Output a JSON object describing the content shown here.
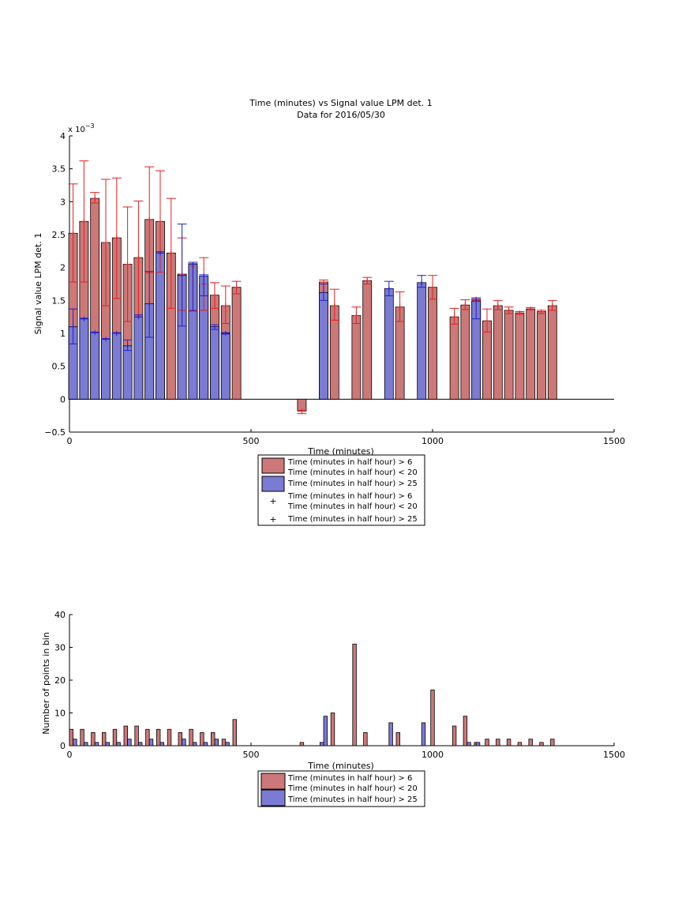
{
  "colors": {
    "red_bar": "#cc7878",
    "blue_bar": "#7b7bd4",
    "red_err": "#e02020",
    "blue_err": "#2020cc",
    "axis": "#000000"
  },
  "chart_data": [
    {
      "type": "bar",
      "title": "Time (minutes) vs Signal value LPM det. 1",
      "subtitle": "Data for 2016/05/30",
      "xlabel": "Time (minutes)",
      "ylabel": "Signal value LPM det. 1",
      "exponent_label": "x 10",
      "exponent_power": "−3",
      "xlim": [
        0,
        1500
      ],
      "ylim": [
        -0.5,
        4
      ],
      "y_scale_factor": 0.001,
      "xticks": [
        "0",
        "500",
        "1000",
        "1500"
      ],
      "yticks": [
        "−0.5",
        "0",
        "0.5",
        "1",
        "1.5",
        "2",
        "2.5",
        "3",
        "3.5",
        "4"
      ],
      "legend_position": "below",
      "legend": [
        {
          "label": "Time (minutes in half hour) > 6",
          "label2": "Time (minutes in half hour) < 20",
          "kind": "red-bar"
        },
        {
          "label": "Time (minutes in half hour) > 25",
          "label2": "",
          "kind": "blue-bar"
        },
        {
          "label": "Time (minutes in half hour) > 6",
          "label2": "Time (minutes in half hour) < 20",
          "kind": "red-plus"
        },
        {
          "label": "Time (minutes in half hour) > 25",
          "label2": "",
          "kind": "blue-plus"
        }
      ],
      "series": [
        {
          "kind": "red",
          "x": [
            10,
            40,
            70,
            100,
            130,
            160,
            190,
            220,
            250,
            280,
            310,
            340,
            370,
            400,
            430,
            460,
            640,
            700,
            730,
            790,
            820,
            910,
            1000,
            1060,
            1090,
            1120,
            1150,
            1180,
            1210,
            1240,
            1270,
            1300,
            1330
          ],
          "values": [
            2.52,
            2.7,
            3.05,
            2.38,
            2.45,
            2.05,
            2.15,
            2.73,
            2.7,
            2.22,
            1.9,
            2.02,
            1.75,
            1.58,
            1.42,
            1.7,
            -0.18,
            1.78,
            1.42,
            1.27,
            1.8,
            1.4,
            1.7,
            1.25,
            1.43,
            1.52,
            1.19,
            1.42,
            1.35,
            1.31,
            1.37,
            1.33,
            1.42
          ],
          "err_low": [
            1.78,
            1.78,
            2.98,
            1.42,
            1.53,
            1.18,
            1.28,
            1.92,
            1.93,
            1.38,
            1.35,
            1.35,
            1.35,
            1.38,
            1.15,
            1.6,
            -0.22,
            1.75,
            1.2,
            1.15,
            1.75,
            1.18,
            1.52,
            1.14,
            1.36,
            1.5,
            1.02,
            1.36,
            1.3,
            1.29,
            1.36,
            1.3,
            1.35
          ],
          "err_high": [
            3.27,
            3.62,
            3.14,
            3.34,
            3.36,
            2.92,
            3.01,
            3.53,
            3.47,
            3.05,
            2.45,
            2.06,
            2.15,
            1.77,
            1.72,
            1.79,
            -0.17,
            1.81,
            1.67,
            1.4,
            1.85,
            1.63,
            1.88,
            1.38,
            1.51,
            1.54,
            1.37,
            1.5,
            1.4,
            1.33,
            1.39,
            1.35,
            1.5
          ]
        },
        {
          "kind": "blue",
          "x": [
            10,
            40,
            70,
            100,
            130,
            160,
            190,
            220,
            250,
            310,
            340,
            370,
            400,
            430,
            700,
            880,
            970,
            1120
          ],
          "values": [
            1.1,
            1.22,
            1.01,
            0.91,
            1.0,
            0.81,
            1.25,
            1.45,
            2.22,
            1.88,
            2.05,
            1.87,
            1.1,
            1.0,
            1.62,
            1.68,
            1.77,
            1.49
          ],
          "err_low": [
            0.84,
            1.22,
            1.01,
            0.91,
            1.0,
            0.74,
            1.25,
            0.94,
            2.22,
            1.11,
            1.34,
            1.57,
            1.06,
            0.99,
            1.5,
            1.57,
            1.7,
            1.22
          ],
          "err_high": [
            1.37,
            1.23,
            1.02,
            0.92,
            1.01,
            0.9,
            1.28,
            1.94,
            2.24,
            2.66,
            2.08,
            1.89,
            1.13,
            1.01,
            1.75,
            1.79,
            1.88,
            1.54
          ]
        }
      ]
    },
    {
      "type": "bar",
      "xlabel": "Time (minutes)",
      "ylabel": "Number of points in bin",
      "xlim": [
        0,
        1500
      ],
      "ylim": [
        0,
        40
      ],
      "xticks": [
        "0",
        "500",
        "1000",
        "1500"
      ],
      "yticks": [
        "0",
        "10",
        "20",
        "30",
        "40"
      ],
      "legend_position": "below",
      "legend": [
        {
          "label": "Time (minutes in half hour) > 6",
          "label2": "Time (minutes in half hour) < 20",
          "kind": "red-bar"
        },
        {
          "label": "Time (minutes in half hour) > 25",
          "label2": "",
          "kind": "blue-bar"
        }
      ],
      "series": [
        {
          "kind": "red",
          "x": [
            5,
            35,
            65,
            95,
            125,
            155,
            185,
            215,
            245,
            275,
            305,
            335,
            365,
            395,
            425,
            455,
            640,
            725,
            785,
            815,
            905,
            1000,
            1060,
            1090,
            1120,
            1150,
            1180,
            1210,
            1240,
            1270,
            1300,
            1330
          ],
          "values": [
            5,
            5,
            4,
            4,
            5,
            6,
            6,
            5,
            5,
            5,
            4,
            5,
            4,
            4,
            2,
            8,
            1,
            10,
            31,
            4,
            4,
            17,
            6,
            9,
            1,
            2,
            2,
            2,
            1,
            2,
            1,
            2
          ]
        },
        {
          "kind": "blue",
          "x": [
            15,
            45,
            75,
            105,
            135,
            165,
            195,
            225,
            255,
            315,
            345,
            375,
            405,
            435,
            695,
            705,
            885,
            975,
            1100,
            1125
          ],
          "values": [
            2,
            1,
            1,
            1,
            1,
            2,
            1,
            2,
            1,
            2,
            1,
            1,
            2,
            1,
            1,
            9,
            7,
            7,
            1,
            1
          ]
        }
      ]
    }
  ]
}
